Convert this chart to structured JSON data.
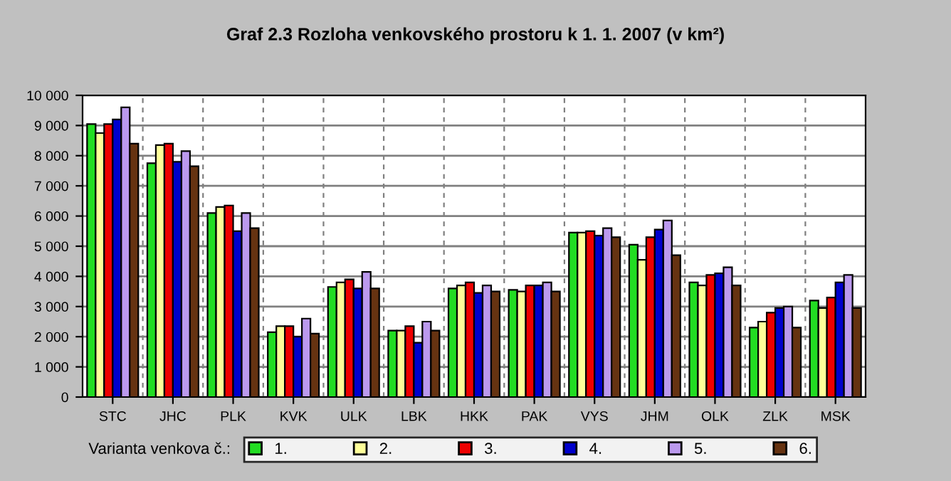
{
  "chart_data": {
    "type": "bar",
    "title": "Graf 2.3 Rozloha venkovského prostoru k 1. 1. 2007 (v km²)",
    "categories": [
      "STC",
      "JHC",
      "PLK",
      "KVK",
      "ULK",
      "LBK",
      "HKK",
      "PAK",
      "VYS",
      "JHM",
      "OLK",
      "ZLK",
      "MSK"
    ],
    "series": [
      {
        "name": "1.",
        "color": "#22dd22",
        "values": [
          9050,
          7750,
          6100,
          2150,
          3650,
          2200,
          3600,
          3550,
          5450,
          5050,
          3800,
          2300,
          3200
        ]
      },
      {
        "name": "2.",
        "color": "#ffff99",
        "values": [
          8750,
          8350,
          6300,
          2350,
          3800,
          2200,
          3700,
          3500,
          5450,
          4550,
          3700,
          2500,
          2950
        ]
      },
      {
        "name": "3.",
        "color": "#ee0000",
        "values": [
          9050,
          8400,
          6350,
          2350,
          3900,
          2350,
          3800,
          3700,
          5500,
          5300,
          4050,
          2800,
          3300
        ]
      },
      {
        "name": "4.",
        "color": "#0000cc",
        "values": [
          9200,
          7800,
          5500,
          2000,
          3600,
          1800,
          3450,
          3700,
          5350,
          5550,
          4100,
          2950,
          3800
        ]
      },
      {
        "name": "5.",
        "color": "#bb99ee",
        "values": [
          9600,
          8150,
          6100,
          2600,
          4150,
          2500,
          3700,
          3800,
          5600,
          5850,
          4300,
          3000,
          4050
        ]
      },
      {
        "name": "6.",
        "color": "#663311",
        "values": [
          8400,
          7650,
          5600,
          2100,
          3600,
          2200,
          3500,
          3500,
          5300,
          4700,
          3700,
          2300,
          2950
        ]
      }
    ],
    "ylim": [
      0,
      10000
    ],
    "yticks": [
      0,
      {
        "value": 1000,
        "label": "1 000"
      },
      {
        "value": 2000,
        "label": "2 000"
      },
      {
        "value": 3000,
        "label": "3 000"
      },
      {
        "value": 4000,
        "label": "4 000"
      },
      {
        "value": 5000,
        "label": "5 000"
      },
      {
        "value": 6000,
        "label": "6 000"
      },
      {
        "value": 7000,
        "label": "7 000"
      },
      {
        "value": 8000,
        "label": "8 000"
      },
      {
        "value": 9000,
        "label": "9 000"
      },
      {
        "value": 10000,
        "label": "10 000"
      }
    ],
    "grid": "y",
    "legend": "bottom",
    "legend_title": "Varianta venkova č.:"
  }
}
